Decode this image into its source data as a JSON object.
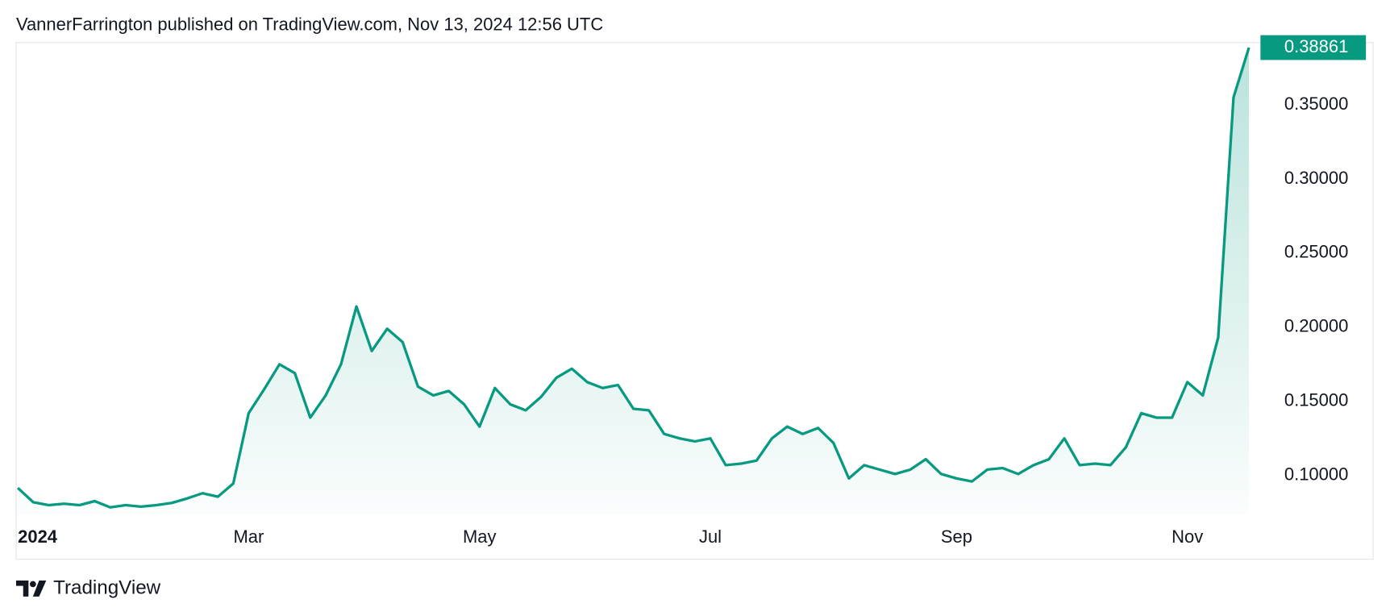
{
  "header": "VannerFarrington published on TradingView.com, Nov 13, 2024 12:56 UTC",
  "footer_brand": "TradingView",
  "chart_data": {
    "type": "line",
    "categories": [
      "2024",
      null,
      null,
      null,
      null,
      null,
      null,
      null,
      null,
      null,
      null,
      null,
      null,
      null,
      null,
      "Mar",
      null,
      null,
      null,
      null,
      null,
      null,
      null,
      null,
      null,
      null,
      null,
      null,
      null,
      null,
      "May",
      null,
      null,
      null,
      null,
      null,
      null,
      null,
      null,
      null,
      null,
      null,
      null,
      null,
      null,
      "Jul",
      null,
      null,
      null,
      null,
      null,
      null,
      null,
      null,
      null,
      null,
      null,
      null,
      null,
      null,
      null,
      "Sep",
      null,
      null,
      null,
      null,
      null,
      null,
      null,
      null,
      null,
      null,
      null,
      null,
      null,
      null,
      "Nov",
      null,
      null,
      null,
      null
    ],
    "values": [
      0.0916,
      0.082,
      0.08,
      0.081,
      0.08,
      0.0827,
      0.0785,
      0.08,
      0.079,
      0.08,
      0.0815,
      0.0845,
      0.088,
      0.0857,
      0.0946,
      0.142,
      0.158,
      0.175,
      0.169,
      0.139,
      0.154,
      0.175,
      0.214,
      0.184,
      0.199,
      0.19,
      0.16,
      0.154,
      0.157,
      0.148,
      0.133,
      0.159,
      0.148,
      0.144,
      0.153,
      0.166,
      0.172,
      0.163,
      0.159,
      0.161,
      0.145,
      0.144,
      0.128,
      0.125,
      0.123,
      0.125,
      0.107,
      0.108,
      0.11,
      0.125,
      0.133,
      0.128,
      0.132,
      0.122,
      0.098,
      0.107,
      0.104,
      0.101,
      0.104,
      0.111,
      0.101,
      0.098,
      0.096,
      0.104,
      0.105,
      0.101,
      0.107,
      0.111,
      0.125,
      0.107,
      0.108,
      0.107,
      0.119,
      0.142,
      0.139,
      0.139,
      0.163,
      0.154,
      0.193,
      0.355,
      0.38861
    ],
    "color": "#089981",
    "ylim": [
      0.068,
      0.392
    ],
    "yticks": [
      {
        "value": 0.1,
        "label": "0.10000"
      },
      {
        "value": 0.15,
        "label": "0.15000"
      },
      {
        "value": 0.2,
        "label": "0.20000"
      },
      {
        "value": 0.25,
        "label": "0.25000"
      },
      {
        "value": 0.3,
        "label": "0.30000"
      },
      {
        "value": 0.35,
        "label": "0.35000"
      }
    ]
  }
}
